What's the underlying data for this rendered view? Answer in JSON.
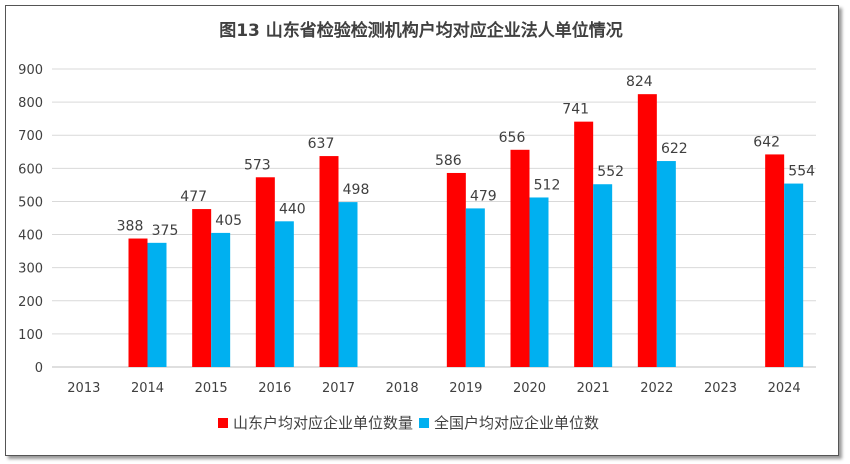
{
  "chart_data": {
    "type": "bar",
    "title": "图13  山东省检验检测机构户均对应企业法人单位情况",
    "categories": [
      "2013",
      "2014",
      "2015",
      "2016",
      "2017",
      "2018",
      "2019",
      "2020",
      "2021",
      "2022",
      "2023",
      "2024"
    ],
    "series": [
      {
        "name": "山东户均对应企业单位数量",
        "color": "#ff0000",
        "values": [
          null,
          388,
          477,
          573,
          637,
          null,
          586,
          656,
          741,
          824,
          null,
          642
        ]
      },
      {
        "name": "全国户均对应企业单位数",
        "color": "#00b0f0",
        "values": [
          null,
          375,
          405,
          440,
          498,
          null,
          479,
          512,
          552,
          622,
          null,
          554
        ]
      }
    ],
    "ylim": [
      0,
      900
    ],
    "yticks": [
      0,
      100,
      200,
      300,
      400,
      500,
      600,
      700,
      800,
      900
    ],
    "grid": true,
    "legend": "bottom",
    "xlabel": "",
    "ylabel": ""
  }
}
